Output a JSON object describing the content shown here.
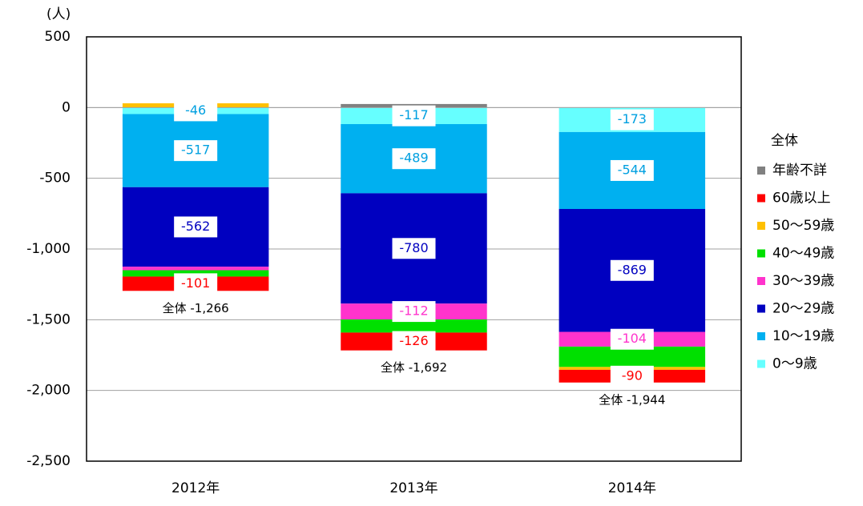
{
  "chart_data": {
    "type": "stacked_bar",
    "y_label": "(人)",
    "legend_title": "全体",
    "categories": [
      "2012年",
      "2013年",
      "2014年"
    ],
    "series": [
      {
        "name": "0～9歳",
        "color": "#66ffff",
        "label_color": "#00a0e0",
        "values": [
          -46,
          -117,
          -173
        ],
        "value_labels": [
          "-46",
          "-117",
          "-173"
        ]
      },
      {
        "name": "10～19歳",
        "color": "#00b0f0",
        "label_color": "#00a0e0",
        "values": [
          -517,
          -489,
          -544
        ],
        "value_labels": [
          "-517",
          "-489",
          "-544"
        ]
      },
      {
        "name": "20～29歳",
        "color": "#0000c0",
        "label_color": "#0000c0",
        "values": [
          -562,
          -780,
          -869
        ],
        "value_labels": [
          "-562",
          "-780",
          "-869"
        ]
      },
      {
        "name": "30～39歳",
        "color": "#ff33cc",
        "label_color": "#ff33cc",
        "values": [
          -25,
          -112,
          -104
        ],
        "value_labels": [
          null,
          "-112",
          "-104"
        ]
      },
      {
        "name": "40～49歳",
        "color": "#00e000",
        "label_color": "#00a000",
        "values": [
          -45,
          -93,
          -144
        ],
        "value_labels": [
          null,
          null,
          null
        ]
      },
      {
        "name": "50～59歳",
        "color": "#ffc000",
        "label_color": "#ffc000",
        "values": [
          30,
          0,
          -20
        ],
        "value_labels": [
          null,
          null,
          null
        ]
      },
      {
        "name": "60歳以上",
        "color": "#ff0000",
        "label_color": "#ff0000",
        "values": [
          -101,
          -126,
          -90
        ],
        "value_labels": [
          "-101",
          "-126",
          "-90"
        ]
      },
      {
        "name": "年齢不詳",
        "color": "#808080",
        "label_color": "#808080",
        "values": [
          0,
          25,
          0
        ],
        "value_labels": [
          null,
          null,
          null
        ]
      }
    ],
    "totals_labels": [
      "全体 -1,266",
      "全体 -1,692",
      "全体 -1,944"
    ],
    "ylim": [
      -2500,
      500
    ],
    "yticks": [
      500,
      0,
      -500,
      {
        "value": -1000,
        "label": "-1,000"
      },
      {
        "value": -1500,
        "label": "-1,500"
      },
      {
        "value": -2000,
        "label": "-2,000"
      },
      {
        "value": -2500,
        "label": "-2,500"
      }
    ],
    "grid": true
  }
}
